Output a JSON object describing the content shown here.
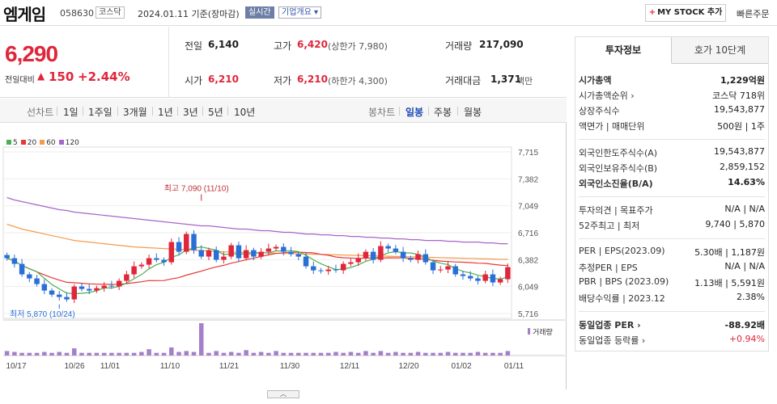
{
  "header": {
    "name": "엠게임",
    "code": "058630",
    "market": "코스닥",
    "date_text": "2024.01.11  기준(장마감)",
    "live_badge": "실시간",
    "overview_btn": "기업개요 ▾",
    "mystock_btn": "MY STOCK 추가",
    "quick_order": "빠른주문"
  },
  "summary": {
    "price": "6,290",
    "change_label": "전일대비",
    "change_arrow": "▲",
    "change_value": "150",
    "change_pct": "+2.44%",
    "prev_close_label": "전일",
    "prev_close": "6,140",
    "high_label": "고가",
    "high": "6,420",
    "upper_limit": "(상한가 7,980)",
    "volume_label": "거래량",
    "volume": "217,090",
    "open_label": "시가",
    "open": "6,210",
    "low_label": "저가",
    "low": "6,210",
    "lower_limit": "(하한가 4,300)",
    "amount_label": "거래대금",
    "amount": "1,371",
    "amount_unit": "백만"
  },
  "toolbar": {
    "line_label": "선차트",
    "ranges": [
      "1일",
      "1주일",
      "3개월",
      "1년",
      "3년",
      "5년",
      "10년"
    ],
    "candle_label": "봉차트",
    "periods": [
      "일봉",
      "주봉",
      "월봉"
    ],
    "active_period": "일봉"
  },
  "chart_data": {
    "type": "candlestick",
    "y_ticks": [
      "7,715",
      "7,382",
      "7,049",
      "6,716",
      "6,382",
      "6,049",
      "5,716"
    ],
    "ylim": [
      5716,
      7715
    ],
    "x_labels": [
      "10/17",
      "10/26",
      "11/01",
      "11/10",
      "11/21",
      "11/30",
      "12/11",
      "12/20",
      "01/02",
      "01/11"
    ],
    "legend": [
      {
        "label": "5",
        "color": "#4caf50"
      },
      {
        "label": "20",
        "color": "#e53935"
      },
      {
        "label": "60",
        "color": "#f39c4d"
      },
      {
        "label": "120",
        "color": "#a765c9"
      }
    ],
    "max_annotation": "최고 7,090 (11/10)",
    "min_annotation": "최저 5,870 (10/24)",
    "volume_label": "거래량",
    "up_color": "#e0263a",
    "down_color": "#2a6fd6",
    "closes": [
      6400,
      6330,
      6200,
      6150,
      6080,
      6000,
      5950,
      5920,
      5890,
      6050,
      6020,
      6000,
      6030,
      6060,
      6050,
      6120,
      6200,
      6300,
      6320,
      6400,
      6380,
      6350,
      6600,
      6480,
      6700,
      6500,
      6420,
      6500,
      6380,
      6420,
      6560,
      6400,
      6500,
      6420,
      6480,
      6520,
      6540,
      6480,
      6450,
      6420,
      6300,
      6250,
      6240,
      6260,
      6250,
      6330,
      6350,
      6400,
      6480,
      6380,
      6550,
      6520,
      6480,
      6400,
      6380,
      6450,
      6350,
      6250,
      6260,
      6300,
      6200,
      6180,
      6150,
      6120,
      6200,
      6100,
      6140,
      6290
    ],
    "volumes": [
      5,
      4,
      3,
      3,
      3,
      4,
      3,
      4,
      3,
      8,
      3,
      3,
      3,
      3,
      3,
      3,
      3,
      3,
      4,
      7,
      3,
      3,
      9,
      4,
      5,
      4,
      36,
      3,
      5,
      3,
      4,
      3,
      6,
      3,
      4,
      3,
      5,
      3,
      3,
      3,
      3,
      3,
      3,
      3,
      4,
      3,
      4,
      3,
      5,
      3,
      5,
      3,
      4,
      3,
      3,
      4,
      3,
      3,
      3,
      4,
      3,
      3,
      3,
      4,
      3,
      3,
      3,
      5
    ],
    "ma120": [
      7150,
      7120,
      7100,
      7080,
      7060,
      7040,
      7020,
      7000,
      6990,
      6970,
      6960,
      6950,
      6940,
      6930,
      6920,
      6910,
      6900,
      6890,
      6880,
      6870,
      6860,
      6850,
      6840,
      6830,
      6820,
      6810,
      6800,
      6800,
      6790,
      6780,
      6770,
      6760,
      6760,
      6750,
      6740,
      6740,
      6730,
      6720,
      6720,
      6710,
      6700,
      6700,
      6690,
      6690,
      6680,
      6680,
      6670,
      6670,
      6660,
      6660,
      6650,
      6650,
      6640,
      6640,
      6630,
      6630,
      6620,
      6620,
      6620,
      6610,
      6610,
      6600,
      6600,
      6600,
      6590,
      6590,
      6580,
      6580
    ],
    "ma60": [
      6820,
      6790,
      6760,
      6740,
      6720,
      6700,
      6680,
      6660,
      6640,
      6620,
      6610,
      6600,
      6590,
      6580,
      6570,
      6560,
      6550,
      6540,
      6535,
      6530,
      6525,
      6520,
      6515,
      6510,
      6505,
      6500,
      6495,
      6490,
      6485,
      6480,
      6478,
      6475,
      6472,
      6470,
      6468,
      6465,
      6462,
      6460,
      6458,
      6455,
      6452,
      6450,
      6448,
      6445,
      6442,
      6440,
      6437,
      6435,
      6432,
      6430,
      6428,
      6425,
      6422,
      6420,
      6418,
      6415,
      6412,
      6410,
      6408,
      6405,
      6402,
      6400,
      6398,
      6395,
      6392,
      6390,
      6388,
      6386
    ]
  },
  "side": {
    "tabs": [
      "투자정보",
      "호가 10단계"
    ],
    "rows": [
      {
        "k": "시가총액",
        "v": "1,229억원",
        "bold": true
      },
      {
        "k": "시가총액순위 ›",
        "v": "코스닥 718위"
      },
      {
        "k": "상장주식수",
        "v": "19,543,877"
      },
      {
        "k": "액면가 | 매매단위",
        "v": "500원 | 1주"
      },
      {
        "k": "외국인한도주식수(A)",
        "v": "19,543,877"
      },
      {
        "k": "외국인보유주식수(B)",
        "v": "2,859,152"
      },
      {
        "k": "외국인소진율(B/A)",
        "v": "14.63%",
        "bold": true
      },
      {
        "k": "투자의견 | 목표주가",
        "v": "N/A | N/A"
      },
      {
        "k": "52주최고 | 최저",
        "v": "9,740 | 5,870"
      },
      {
        "k": "PER | EPS(2023.09)",
        "v": "5.30배 | 1,187원"
      },
      {
        "k": "추정PER | EPS",
        "v": "N/A | N/A"
      },
      {
        "k": "PBR | BPS (2023.09)",
        "v": "1.13배 | 5,591원"
      },
      {
        "k": "배당수익률 | 2023.12",
        "v": "2.38%"
      },
      {
        "k": "동일업종 PER ›",
        "v": "-88.92배",
        "bold": true
      },
      {
        "k": "동일업종 등락률 ›",
        "v": "+0.94%",
        "red": true
      }
    ]
  },
  "toggle": "︿"
}
